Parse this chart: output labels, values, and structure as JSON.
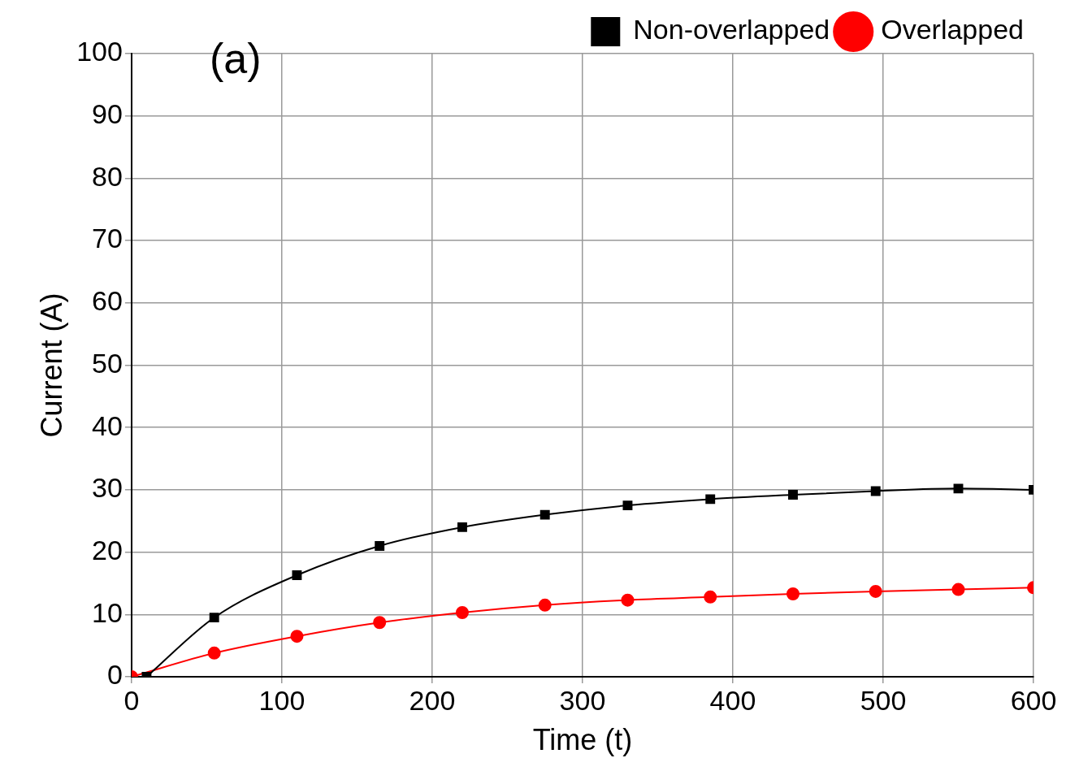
{
  "chart_data": {
    "type": "line",
    "xlabel": "Time (t)",
    "ylabel": "Current (A)",
    "annotations": [
      "(a)"
    ],
    "xlim": [
      0,
      600
    ],
    "xticks": [
      0,
      100,
      200,
      300,
      400,
      500,
      600
    ],
    "ylim": [
      0,
      100
    ],
    "yticks": [
      0,
      10,
      20,
      30,
      40,
      50,
      60,
      70,
      80,
      90,
      100
    ],
    "grid": true,
    "legend": "top right",
    "series": [
      {
        "name": "Non-overlapped",
        "color": "#000000",
        "marker": "square",
        "x": [
          10,
          55,
          110,
          165,
          220,
          275,
          330,
          385,
          440,
          495,
          550,
          600
        ],
        "values": [
          0,
          9.5,
          16.3,
          21,
          24,
          26,
          27.5,
          28.5,
          29.2,
          29.8,
          30.2,
          30
        ]
      },
      {
        "name": "Overlapped",
        "color": "#ff0000",
        "marker": "circle",
        "x": [
          0,
          55,
          110,
          165,
          220,
          275,
          330,
          385,
          440,
          495,
          550,
          600
        ],
        "values": [
          0,
          3.8,
          6.5,
          8.7,
          10.3,
          11.5,
          12.3,
          12.8,
          13.3,
          13.7,
          14,
          14.3
        ]
      }
    ]
  }
}
